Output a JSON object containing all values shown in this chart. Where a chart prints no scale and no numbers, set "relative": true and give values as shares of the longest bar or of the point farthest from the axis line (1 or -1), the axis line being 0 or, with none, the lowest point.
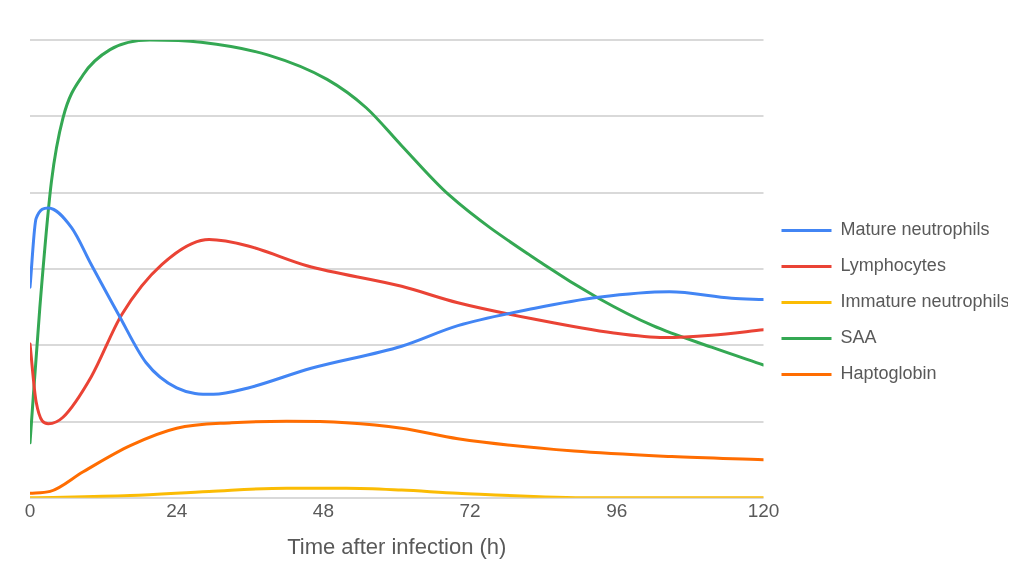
{
  "chart_data": {
    "type": "line",
    "xlabel": "Time after infection (h)",
    "relative": true,
    "xlim": [
      0,
      120
    ],
    "xticks": [
      0,
      24,
      48,
      72,
      96,
      120
    ],
    "grid": "y",
    "legend": "right",
    "marker": "none",
    "line_style": "solid",
    "series": [
      {
        "name": "Mature neutrophils",
        "color": "#4285f4",
        "x": [
          0,
          1,
          3,
          6.8,
          10,
          14.5,
          19,
          24,
          30,
          35.7,
          46,
          60.8,
          70,
          82.6,
          93,
          104.6,
          114.8,
          120
        ],
        "values": [
          0.46,
          0.61,
          0.633,
          0.59,
          0.51,
          0.4,
          0.295,
          0.24,
          0.226,
          0.24,
          0.283,
          0.331,
          0.376,
          0.414,
          0.438,
          0.45,
          0.436,
          0.433
        ]
      },
      {
        "name": "Lymphocytes",
        "color": "#ea4335",
        "x": [
          0,
          1,
          3,
          5.4,
          10,
          15,
          21.6,
          29.3,
          35.7,
          45.3,
          60.8,
          70,
          82.6,
          95.5,
          103.8,
          111.5,
          120
        ],
        "values": [
          0.336,
          0.21,
          0.162,
          0.176,
          0.264,
          0.4,
          0.51,
          0.564,
          0.55,
          0.507,
          0.462,
          0.426,
          0.39,
          0.36,
          0.35,
          0.355,
          0.367
        ]
      },
      {
        "name": "Immature neutrophils",
        "color": "#fbbc04",
        "x": [
          0,
          16.4,
          29.3,
          42,
          51.7,
          60.8,
          70,
          92,
          120
        ],
        "values": [
          0,
          0.005,
          0.014,
          0.021,
          0.021,
          0.017,
          0.01,
          0,
          0
        ]
      },
      {
        "name": "SAA",
        "color": "#34a853",
        "x": [
          0,
          1.6,
          3.5,
          5.4,
          8.7,
          13.1,
          19.6,
          28,
          39,
          48.6,
          55,
          60.8,
          68.5,
          84,
          93,
          101.9,
          111.5,
          120
        ],
        "values": [
          0.12,
          0.414,
          0.69,
          0.83,
          0.924,
          0.979,
          1,
          0.995,
          0.967,
          0.914,
          0.852,
          0.769,
          0.662,
          0.51,
          0.436,
          0.376,
          0.329,
          0.29
        ]
      },
      {
        "name": "Haptoglobin",
        "color": "#ff6d01",
        "x": [
          0,
          3.3,
          8.7,
          16.4,
          24,
          33,
          42,
          51.7,
          60.8,
          70,
          89,
          105,
          120
        ],
        "values": [
          0.01,
          0.014,
          0.057,
          0.114,
          0.152,
          0.164,
          0.167,
          0.164,
          0.152,
          0.129,
          0.102,
          0.09,
          0.083
        ]
      }
    ]
  }
}
